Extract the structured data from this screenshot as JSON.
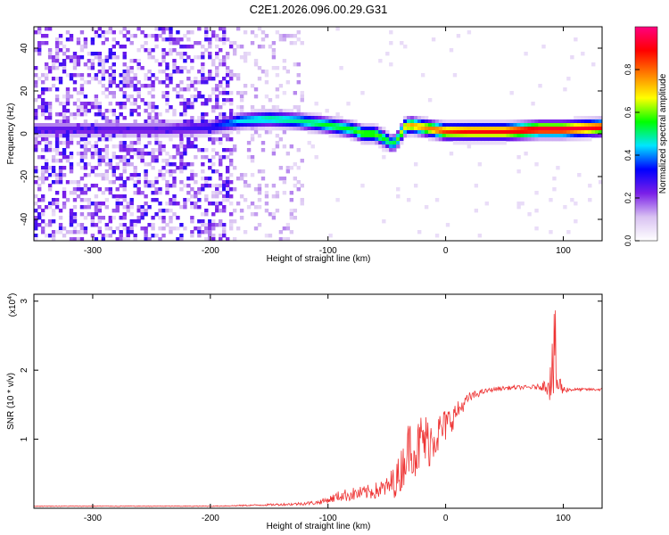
{
  "chart_data": [
    {
      "type": "heatmap",
      "title": "C2E1.2026.096.00.29.G31",
      "xlabel": "Height of straight line (km)",
      "ylabel": "Frequency (Hz)",
      "xlim": [
        -350,
        133
      ],
      "ylim": [
        -50,
        50
      ],
      "x_ticks": [
        -300,
        -200,
        -100,
        0,
        100
      ],
      "x_tick_labels": [
        "-300",
        "-200",
        "-100",
        "0",
        "100"
      ],
      "y_ticks": [
        -40,
        -20,
        0,
        20,
        40
      ],
      "y_tick_labels": [
        "-40",
        "-20",
        "0",
        "20",
        "40"
      ],
      "colorbar": {
        "label": "Normalized spectral amplitude",
        "range": [
          0,
          1
        ],
        "ticks": [
          0,
          0.2,
          0.4,
          0.6,
          0.8
        ],
        "tick_labels": [
          "0.0",
          "0.2",
          "0.4",
          "0.6",
          "0.8"
        ],
        "colors": [
          "#ffffff",
          "#d9c2f2",
          "#7a1fe8",
          "#0000ff",
          "#00e5ff",
          "#00ff00",
          "#ffff00",
          "#ff8000",
          "#ff0000",
          "#ff0080"
        ]
      },
      "signal_trace": {
        "x": [
          -240,
          -200,
          -175,
          -150,
          -125,
          -100,
          -80,
          -70,
          -60,
          -50,
          -45,
          -40,
          -35,
          -30,
          -20,
          -10,
          0,
          20,
          50,
          80,
          100,
          133
        ],
        "y": [
          2,
          3,
          6,
          7,
          6,
          4,
          2,
          0,
          0,
          -3,
          -5,
          -2,
          3,
          4,
          3,
          2,
          1,
          1,
          1,
          2,
          2,
          3
        ],
        "peak_amplitude": [
          0.25,
          0.3,
          0.45,
          0.5,
          0.5,
          0.55,
          0.55,
          0.6,
          0.6,
          0.55,
          0.5,
          0.6,
          0.7,
          0.75,
          0.75,
          0.8,
          0.85,
          0.9,
          0.9,
          0.95,
          0.95,
          0.9
        ]
      }
    },
    {
      "type": "line",
      "xlabel": "Height of straight line (km)",
      "ylabel": "SNR (10 * v/v)",
      "multiplier_label": "(x10",
      "multiplier_exp": "4",
      "multiplier_close": ")",
      "xlim": [
        -350,
        133
      ],
      "ylim": [
        0,
        3.1
      ],
      "x_ticks": [
        -300,
        -200,
        -100,
        0,
        100
      ],
      "x_tick_labels": [
        "-300",
        "-200",
        "-100",
        "0",
        "100"
      ],
      "y_ticks": [
        1,
        2,
        3
      ],
      "y_tick_labels": [
        "1",
        "2",
        "3"
      ],
      "line_color": "#ee3333",
      "series": [
        {
          "name": "SNR",
          "x": [
            -350,
            -300,
            -250,
            -200,
            -170,
            -150,
            -130,
            -110,
            -100,
            -90,
            -80,
            -70,
            -60,
            -50,
            -40,
            -35,
            -30,
            -25,
            -20,
            -15,
            -10,
            -5,
            0,
            5,
            10,
            15,
            20,
            30,
            40,
            50,
            60,
            70,
            80,
            85,
            90,
            93,
            95,
            100,
            110,
            120,
            133
          ],
          "y": [
            0.03,
            0.03,
            0.03,
            0.03,
            0.04,
            0.05,
            0.06,
            0.08,
            0.12,
            0.18,
            0.2,
            0.22,
            0.25,
            0.3,
            0.45,
            0.7,
            0.95,
            0.8,
            1.0,
            0.95,
            1.05,
            1.1,
            1.2,
            1.3,
            1.4,
            1.5,
            1.6,
            1.68,
            1.72,
            1.74,
            1.75,
            1.75,
            1.76,
            1.78,
            1.9,
            2.2,
            1.8,
            1.72,
            1.72,
            1.72,
            1.72
          ]
        }
      ],
      "noise_amplitude": [
        0.005,
        0.005,
        0.005,
        0.006,
        0.01,
        0.015,
        0.02,
        0.03,
        0.05,
        0.08,
        0.1,
        0.1,
        0.12,
        0.15,
        0.3,
        0.35,
        0.4,
        0.4,
        0.45,
        0.4,
        0.35,
        0.3,
        0.25,
        0.2,
        0.15,
        0.1,
        0.08,
        0.04,
        0.03,
        0.03,
        0.03,
        0.03,
        0.04,
        0.1,
        0.4,
        0.8,
        0.3,
        0.05,
        0.02,
        0.02,
        0.02
      ]
    }
  ]
}
